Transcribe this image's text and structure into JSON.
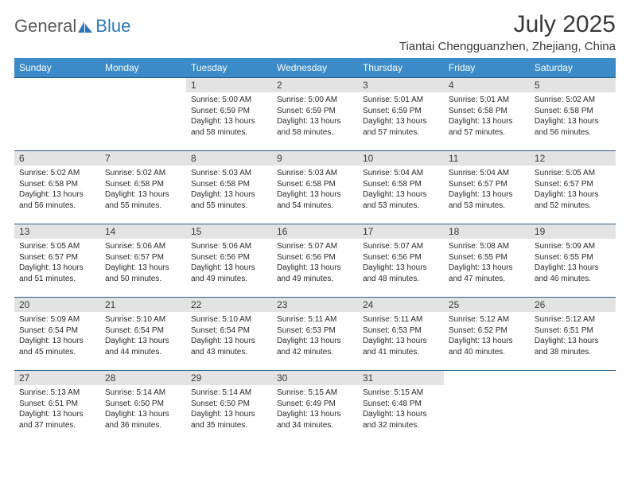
{
  "logo": {
    "general": "General",
    "blue": "Blue"
  },
  "title": "July 2025",
  "location": "Tiantai Chengguanzhen, Zhejiang, China",
  "colors": {
    "header_bg": "#3b8bc9",
    "row_border": "#2a5d8a",
    "daynum_bg": "#e3e3e3",
    "text_dark": "#3a3a3a",
    "logo_gray": "#5a5a5a",
    "logo_blue": "#2e77b8"
  },
  "day_headers": [
    "Sunday",
    "Monday",
    "Tuesday",
    "Wednesday",
    "Thursday",
    "Friday",
    "Saturday"
  ],
  "weeks": [
    [
      null,
      null,
      {
        "n": "1",
        "sr": "5:00 AM",
        "ss": "6:59 PM",
        "dl": "13 hours and 58 minutes."
      },
      {
        "n": "2",
        "sr": "5:00 AM",
        "ss": "6:59 PM",
        "dl": "13 hours and 58 minutes."
      },
      {
        "n": "3",
        "sr": "5:01 AM",
        "ss": "6:59 PM",
        "dl": "13 hours and 57 minutes."
      },
      {
        "n": "4",
        "sr": "5:01 AM",
        "ss": "6:58 PM",
        "dl": "13 hours and 57 minutes."
      },
      {
        "n": "5",
        "sr": "5:02 AM",
        "ss": "6:58 PM",
        "dl": "13 hours and 56 minutes."
      }
    ],
    [
      {
        "n": "6",
        "sr": "5:02 AM",
        "ss": "6:58 PM",
        "dl": "13 hours and 56 minutes."
      },
      {
        "n": "7",
        "sr": "5:02 AM",
        "ss": "6:58 PM",
        "dl": "13 hours and 55 minutes."
      },
      {
        "n": "8",
        "sr": "5:03 AM",
        "ss": "6:58 PM",
        "dl": "13 hours and 55 minutes."
      },
      {
        "n": "9",
        "sr": "5:03 AM",
        "ss": "6:58 PM",
        "dl": "13 hours and 54 minutes."
      },
      {
        "n": "10",
        "sr": "5:04 AM",
        "ss": "6:58 PM",
        "dl": "13 hours and 53 minutes."
      },
      {
        "n": "11",
        "sr": "5:04 AM",
        "ss": "6:57 PM",
        "dl": "13 hours and 53 minutes."
      },
      {
        "n": "12",
        "sr": "5:05 AM",
        "ss": "6:57 PM",
        "dl": "13 hours and 52 minutes."
      }
    ],
    [
      {
        "n": "13",
        "sr": "5:05 AM",
        "ss": "6:57 PM",
        "dl": "13 hours and 51 minutes."
      },
      {
        "n": "14",
        "sr": "5:06 AM",
        "ss": "6:57 PM",
        "dl": "13 hours and 50 minutes."
      },
      {
        "n": "15",
        "sr": "5:06 AM",
        "ss": "6:56 PM",
        "dl": "13 hours and 49 minutes."
      },
      {
        "n": "16",
        "sr": "5:07 AM",
        "ss": "6:56 PM",
        "dl": "13 hours and 49 minutes."
      },
      {
        "n": "17",
        "sr": "5:07 AM",
        "ss": "6:56 PM",
        "dl": "13 hours and 48 minutes."
      },
      {
        "n": "18",
        "sr": "5:08 AM",
        "ss": "6:55 PM",
        "dl": "13 hours and 47 minutes."
      },
      {
        "n": "19",
        "sr": "5:09 AM",
        "ss": "6:55 PM",
        "dl": "13 hours and 46 minutes."
      }
    ],
    [
      {
        "n": "20",
        "sr": "5:09 AM",
        "ss": "6:54 PM",
        "dl": "13 hours and 45 minutes."
      },
      {
        "n": "21",
        "sr": "5:10 AM",
        "ss": "6:54 PM",
        "dl": "13 hours and 44 minutes."
      },
      {
        "n": "22",
        "sr": "5:10 AM",
        "ss": "6:54 PM",
        "dl": "13 hours and 43 minutes."
      },
      {
        "n": "23",
        "sr": "5:11 AM",
        "ss": "6:53 PM",
        "dl": "13 hours and 42 minutes."
      },
      {
        "n": "24",
        "sr": "5:11 AM",
        "ss": "6:53 PM",
        "dl": "13 hours and 41 minutes."
      },
      {
        "n": "25",
        "sr": "5:12 AM",
        "ss": "6:52 PM",
        "dl": "13 hours and 40 minutes."
      },
      {
        "n": "26",
        "sr": "5:12 AM",
        "ss": "6:51 PM",
        "dl": "13 hours and 38 minutes."
      }
    ],
    [
      {
        "n": "27",
        "sr": "5:13 AM",
        "ss": "6:51 PM",
        "dl": "13 hours and 37 minutes."
      },
      {
        "n": "28",
        "sr": "5:14 AM",
        "ss": "6:50 PM",
        "dl": "13 hours and 36 minutes."
      },
      {
        "n": "29",
        "sr": "5:14 AM",
        "ss": "6:50 PM",
        "dl": "13 hours and 35 minutes."
      },
      {
        "n": "30",
        "sr": "5:15 AM",
        "ss": "6:49 PM",
        "dl": "13 hours and 34 minutes."
      },
      {
        "n": "31",
        "sr": "5:15 AM",
        "ss": "6:48 PM",
        "dl": "13 hours and 32 minutes."
      },
      null,
      null
    ]
  ],
  "labels": {
    "sunrise": "Sunrise:",
    "sunset": "Sunset:",
    "daylight": "Daylight:"
  }
}
